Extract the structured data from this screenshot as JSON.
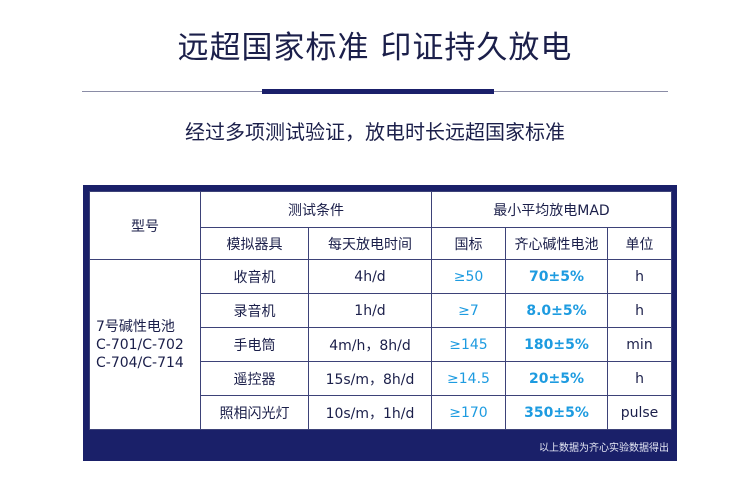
{
  "header": {
    "title": "远超国家标准  印证持久放电",
    "subtitle": "经过多项测试验证，放电时长远超国家标准"
  },
  "table": {
    "col_model": "型号",
    "col_test_conditions": "测试条件",
    "col_min_avg": "最小平均放电MAD",
    "col_device": "模拟器具",
    "col_daily_time": "每天放电时间",
    "col_national": "国标",
    "col_qixin": "齐心碱性电池",
    "col_unit": "单位",
    "model_line1": "7号碱性电池",
    "model_line2": "C-701/C-702",
    "model_line3": "C-704/C-714",
    "rows": [
      {
        "device": "收音机",
        "time": "4h/d",
        "national": "≥50",
        "qixin": "70±5%",
        "unit": "h"
      },
      {
        "device": "录音机",
        "time": "1h/d",
        "national": "≥7",
        "qixin": "8.0±5%",
        "unit": "h"
      },
      {
        "device": "手电筒",
        "time": "4m/h，8h/d",
        "national": "≥145",
        "qixin": "180±5%",
        "unit": "min"
      },
      {
        "device": "遥控器",
        "time": "15s/m，8h/d",
        "national": "≥14.5",
        "qixin": "20±5%",
        "unit": "h"
      },
      {
        "device": "照相闪光灯",
        "time": "10s/m，1h/d",
        "national": "≥170",
        "qixin": "350±5%",
        "unit": "pulse"
      }
    ],
    "footnote": "以上数据为齐心实验数据得出"
  },
  "colors": {
    "navy": "#1a2069",
    "accent_blue": "#1d9be0"
  }
}
